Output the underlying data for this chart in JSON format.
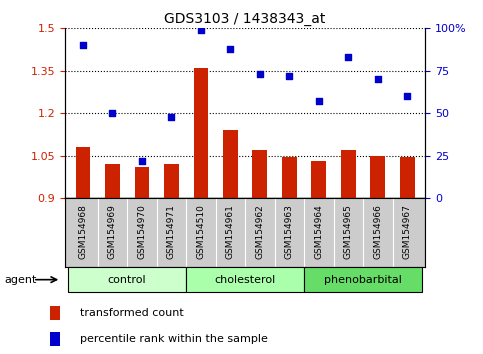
{
  "title": "GDS3103 / 1438343_at",
  "samples": [
    "GSM154968",
    "GSM154969",
    "GSM154970",
    "GSM154971",
    "GSM154510",
    "GSM154961",
    "GSM154962",
    "GSM154963",
    "GSM154964",
    "GSM154965",
    "GSM154966",
    "GSM154967"
  ],
  "bar_values": [
    1.08,
    1.02,
    1.01,
    1.02,
    1.36,
    1.14,
    1.07,
    1.045,
    1.03,
    1.07,
    1.05,
    1.045
  ],
  "scatter_values": [
    90,
    50,
    22,
    48,
    99,
    88,
    73,
    72,
    57,
    83,
    70,
    60
  ],
  "bar_color": "#cc2200",
  "scatter_color": "#0000cc",
  "ylim_left": [
    0.9,
    1.5
  ],
  "ylim_right": [
    0,
    100
  ],
  "yticks_left": [
    0.9,
    1.05,
    1.2,
    1.35,
    1.5
  ],
  "yticks_right": [
    0,
    25,
    50,
    75,
    100
  ],
  "ytick_labels_right": [
    "0",
    "25",
    "50",
    "75",
    "100%"
  ],
  "groups": [
    {
      "label": "control",
      "indices": [
        0,
        1,
        2,
        3
      ],
      "color": "#ccffcc"
    },
    {
      "label": "cholesterol",
      "indices": [
        4,
        5,
        6,
        7
      ],
      "color": "#aaffaa"
    },
    {
      "label": "phenobarbital",
      "indices": [
        8,
        9,
        10,
        11
      ],
      "color": "#66dd66"
    }
  ],
  "agent_label": "agent",
  "legend_bar_label": "transformed count",
  "legend_scatter_label": "percentile rank within the sample",
  "bar_width": 0.5,
  "tick_area_color": "#cccccc",
  "xlim": [
    -0.6,
    11.6
  ]
}
